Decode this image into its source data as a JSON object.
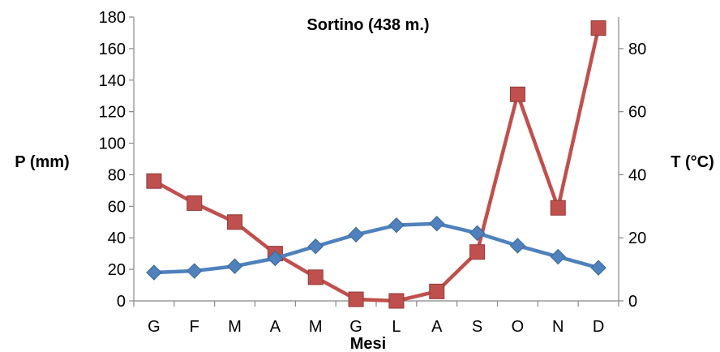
{
  "chart_data": {
    "type": "line",
    "title": "Sortino (438 m.)",
    "xlabel": "Mesi",
    "ylabel_left": "P (mm)",
    "ylabel_right": "T (°C)",
    "categories": [
      "G",
      "F",
      "M",
      "A",
      "M",
      "G",
      "L",
      "A",
      "S",
      "O",
      "N",
      "D"
    ],
    "y_left": {
      "min": 0,
      "max": 180,
      "step": 20,
      "ticks": [
        "0",
        "20",
        "40",
        "60",
        "80",
        "100",
        "120",
        "140",
        "160",
        "180"
      ]
    },
    "y_right": {
      "min": 0,
      "max": 90,
      "step": 20,
      "ticks": [
        "0",
        "20",
        "40",
        "60",
        "80"
      ]
    },
    "grid": false,
    "legend": "none",
    "series": [
      {
        "axis": "left",
        "marker": "square",
        "color": "#C0504D",
        "values": [
          76,
          62,
          50,
          30,
          15,
          1,
          0,
          6,
          31,
          131,
          59,
          173
        ]
      },
      {
        "axis": "right",
        "marker": "diamond",
        "color": "#4F81BD",
        "values": [
          9,
          9.5,
          11,
          13.5,
          17.3,
          21,
          24,
          24.5,
          21.5,
          17.5,
          14,
          10.5
        ]
      }
    ]
  }
}
